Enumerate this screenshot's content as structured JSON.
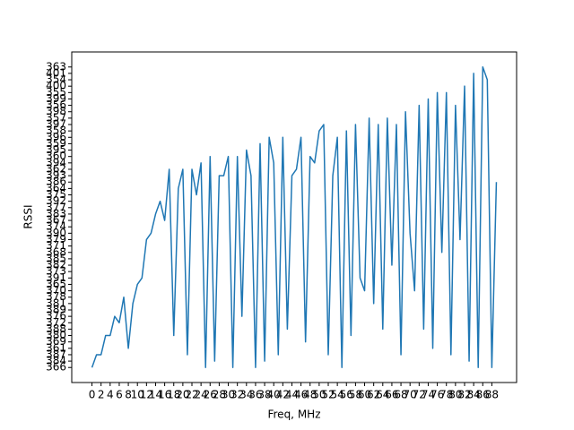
{
  "chart_data": {
    "type": "line",
    "xlabel": "Freq, MHz",
    "ylabel": "RSSI",
    "color": "#1f77b4",
    "x": [
      0,
      1,
      2,
      3,
      4,
      5,
      6,
      7,
      8,
      9,
      10,
      11,
      12,
      13,
      14,
      15,
      16,
      17,
      18,
      19,
      20,
      21,
      22,
      23,
      24,
      25,
      26,
      27,
      28,
      29,
      30,
      31,
      32,
      33,
      34,
      35,
      36,
      37,
      38,
      39,
      40,
      41,
      42,
      43,
      44,
      45,
      46,
      47,
      48,
      49,
      50,
      51,
      52,
      53,
      54,
      55,
      56,
      57,
      58,
      59,
      60,
      61,
      62,
      63,
      64,
      65,
      66,
      67,
      68,
      69,
      70,
      71,
      72,
      73,
      74,
      75,
      76,
      77,
      78,
      79,
      80,
      81,
      82,
      83,
      84,
      85,
      86,
      87,
      88,
      89
    ],
    "values": [
      0,
      2,
      2,
      5,
      5,
      8,
      7,
      11,
      3,
      10,
      13,
      14,
      20,
      21,
      24,
      26,
      23,
      31,
      5,
      28,
      31,
      2,
      31,
      27,
      32,
      0,
      33,
      1,
      30,
      30,
      33,
      0,
      33,
      8,
      34,
      30,
      0,
      35,
      1,
      36,
      32,
      2,
      36,
      6,
      30,
      31,
      36,
      4,
      33,
      32,
      37,
      38,
      2,
      30,
      36,
      0,
      37,
      5,
      38,
      14,
      12,
      39,
      10,
      38,
      6,
      39,
      16,
      38,
      2,
      40,
      21,
      12,
      41,
      6,
      42,
      3,
      43,
      18,
      43,
      2,
      41,
      20,
      44,
      1,
      46,
      0,
      47,
      45,
      0,
      29
    ],
    "xlim": [
      -4.45,
      93.45
    ],
    "xticks": [
      0,
      2,
      4,
      6,
      8,
      10,
      12,
      14,
      16,
      18,
      20,
      22,
      24,
      26,
      28,
      30,
      32,
      34,
      36,
      38,
      40,
      42,
      44,
      46,
      48,
      50,
      52,
      54,
      56,
      58,
      60,
      62,
      64,
      66,
      68,
      70,
      72,
      74,
      76,
      78,
      80,
      82,
      84,
      86,
      88
    ],
    "ylim": [
      -2.35,
      49.35
    ],
    "yticks": [
      {
        "value": 0,
        "label": "366"
      },
      {
        "value": 1,
        "label": "384"
      },
      {
        "value": 2,
        "label": "387"
      },
      {
        "value": 3,
        "label": "361"
      },
      {
        "value": 4,
        "label": "369"
      },
      {
        "value": 5,
        "label": "380"
      },
      {
        "value": 6,
        "label": "388"
      },
      {
        "value": 7,
        "label": "372"
      },
      {
        "value": 8,
        "label": "376"
      },
      {
        "value": 9,
        "label": "389"
      },
      {
        "value": 10,
        "label": "381"
      },
      {
        "value": 11,
        "label": "378"
      },
      {
        "value": 12,
        "label": "370"
      },
      {
        "value": 13,
        "label": "365"
      },
      {
        "value": 14,
        "label": "391"
      },
      {
        "value": 15,
        "label": "373"
      },
      {
        "value": 16,
        "label": "382"
      },
      {
        "value": 17,
        "label": "385"
      },
      {
        "value": 18,
        "label": "368"
      },
      {
        "value": 19,
        "label": "371"
      },
      {
        "value": 20,
        "label": "379"
      },
      {
        "value": 21,
        "label": "390"
      },
      {
        "value": 22,
        "label": "374"
      },
      {
        "value": 23,
        "label": "367"
      },
      {
        "value": 24,
        "label": "383"
      },
      {
        "value": 25,
        "label": "377"
      },
      {
        "value": 26,
        "label": "392"
      },
      {
        "value": 27,
        "label": "375"
      },
      {
        "value": 28,
        "label": "364"
      },
      {
        "value": 29,
        "label": "386"
      },
      {
        "value": 30,
        "label": "393"
      },
      {
        "value": 31,
        "label": "362"
      },
      {
        "value": 32,
        "label": "394"
      },
      {
        "value": 33,
        "label": "360"
      },
      {
        "value": 34,
        "label": "395"
      },
      {
        "value": 35,
        "label": "359"
      },
      {
        "value": 36,
        "label": "396"
      },
      {
        "value": 37,
        "label": "358"
      },
      {
        "value": 38,
        "label": "397"
      },
      {
        "value": 39,
        "label": "357"
      },
      {
        "value": 40,
        "label": "398"
      },
      {
        "value": 41,
        "label": "356"
      },
      {
        "value": 42,
        "label": "399"
      },
      {
        "value": 43,
        "label": "355"
      },
      {
        "value": 44,
        "label": "400"
      },
      {
        "value": 45,
        "label": "354"
      },
      {
        "value": 46,
        "label": "401"
      },
      {
        "value": 47,
        "label": "363"
      }
    ]
  }
}
